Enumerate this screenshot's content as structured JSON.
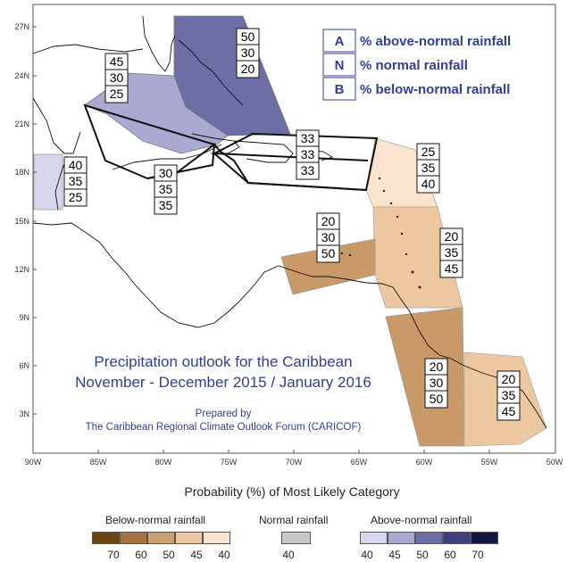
{
  "map": {
    "lat_labels": [
      "27N",
      "24N",
      "21N",
      "18N",
      "15N",
      "12N",
      "9N",
      "6N",
      "3N"
    ],
    "lon_labels": [
      "90W",
      "85W",
      "80W",
      "75W",
      "70W",
      "65W",
      "60W",
      "55W",
      "50W"
    ],
    "title_line1": "Precipitation outlook for the Caribbean",
    "title_line2": "November - December 2015 / January 2016",
    "prepared_by": "Prepared by",
    "organization": "The Caribbean Regional Climate Outlook Forum (CARICOF)"
  },
  "legend_key": [
    {
      "letter": "A",
      "text": "% above-normal rainfall"
    },
    {
      "letter": "N",
      "text": "% normal rainfall"
    },
    {
      "letter": "B",
      "text": "% below-normal rainfall"
    }
  ],
  "regions": [
    {
      "id": "bahamas",
      "above": "50",
      "normal": "30",
      "below": "20",
      "color": "#6e6ea6"
    },
    {
      "id": "cuba",
      "above": "45",
      "normal": "30",
      "below": "25",
      "color": "#a9a9d2"
    },
    {
      "id": "belize",
      "above": "40",
      "normal": "35",
      "below": "25",
      "color": "#d6d6ec"
    },
    {
      "id": "jamaica",
      "above": "30",
      "normal": "35",
      "below": "35",
      "color": "#ffffff"
    },
    {
      "id": "hispaniola-pr",
      "above": "33",
      "normal": "33",
      "below": "33",
      "color": "#ffffff"
    },
    {
      "id": "leeward",
      "above": "25",
      "normal": "35",
      "below": "40",
      "color": "#fbe4cd"
    },
    {
      "id": "abc-islands",
      "above": "20",
      "normal": "30",
      "below": "50",
      "color": "#c99a67"
    },
    {
      "id": "windward",
      "above": "20",
      "normal": "35",
      "below": "45",
      "color": "#ecc7a0"
    },
    {
      "id": "guyana-suriname",
      "above": "20",
      "normal": "30",
      "below": "50",
      "color": "#c99a67"
    },
    {
      "id": "french-guiana",
      "above": "20",
      "normal": "35",
      "below": "45",
      "color": "#ecc7a0"
    }
  ],
  "probability_legend": {
    "title": "Probability (%) of Most Likely Category",
    "below_label": "Below-normal rainfall",
    "normal_label": "Normal rainfall",
    "above_label": "Above-normal rainfall",
    "below": [
      {
        "value": "70",
        "color": "#6b4413"
      },
      {
        "value": "60",
        "color": "#a5733f"
      },
      {
        "value": "50",
        "color": "#cda06f"
      },
      {
        "value": "45",
        "color": "#ecc7a0"
      },
      {
        "value": "40",
        "color": "#fbe4cd"
      }
    ],
    "normal": [
      {
        "value": "40",
        "color": "#c8c8c8"
      }
    ],
    "above": [
      {
        "value": "40",
        "color": "#d6d6ec"
      },
      {
        "value": "45",
        "color": "#a9a9d2"
      },
      {
        "value": "50",
        "color": "#6e6ea6"
      },
      {
        "value": "60",
        "color": "#3f3f7e"
      },
      {
        "value": "70",
        "color": "#141445"
      }
    ]
  }
}
